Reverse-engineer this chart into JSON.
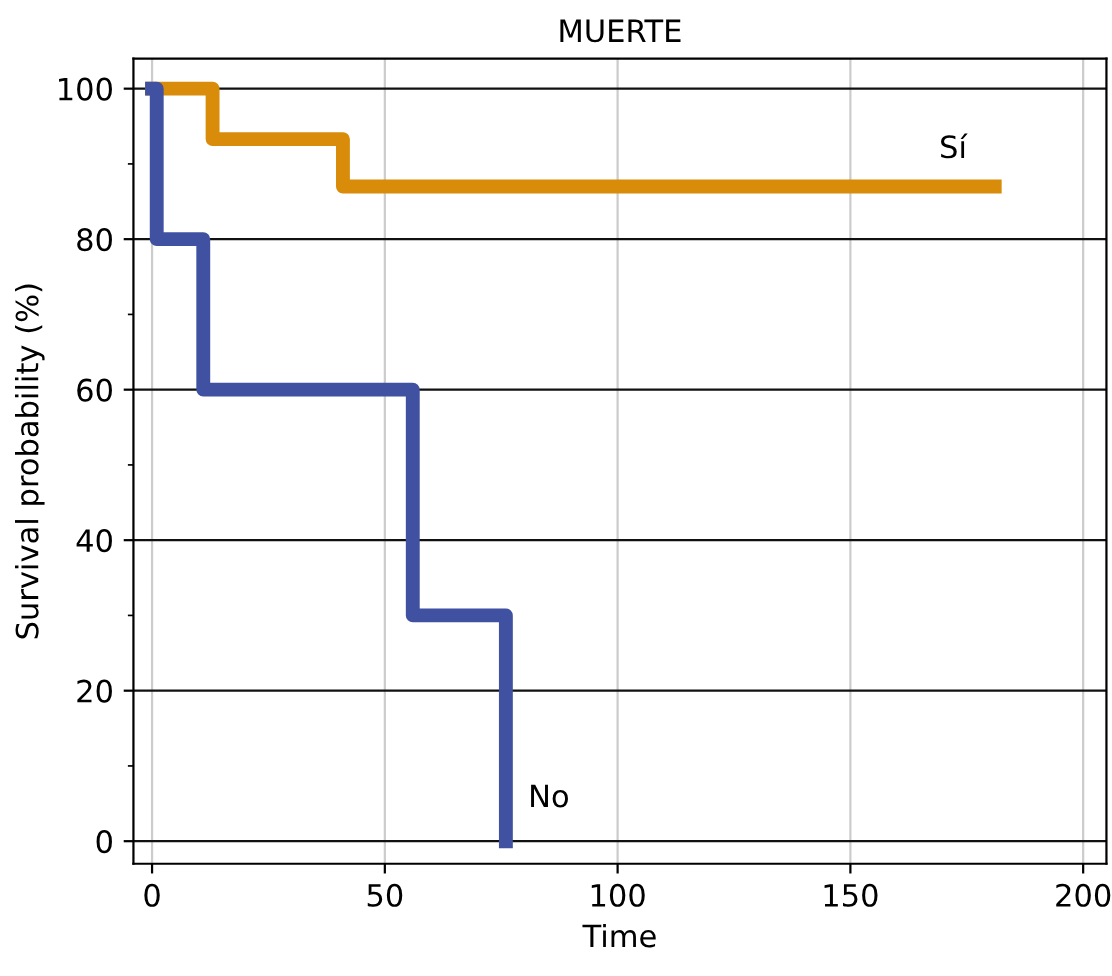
{
  "chart_data": {
    "type": "step",
    "title": "MUERTE",
    "xlabel": "Time",
    "ylabel": "Survival probability (%)",
    "xlim": [
      -4,
      205
    ],
    "ylim": [
      -3,
      104
    ],
    "xticks": [
      0,
      50,
      100,
      150,
      200
    ],
    "yticks": [
      0,
      20,
      40,
      60,
      80,
      100
    ],
    "grid": true,
    "line_style": "solid",
    "series": [
      {
        "name": "Sí",
        "color": "#d98b0a",
        "x": [
          0,
          13,
          41,
          181
        ],
        "values": [
          100,
          93.3,
          87,
          87
        ]
      },
      {
        "name": "No",
        "color": "#3f51a0",
        "x": [
          0,
          1,
          11,
          56,
          76
        ],
        "values": [
          100,
          80,
          60,
          30,
          0
        ]
      }
    ]
  }
}
